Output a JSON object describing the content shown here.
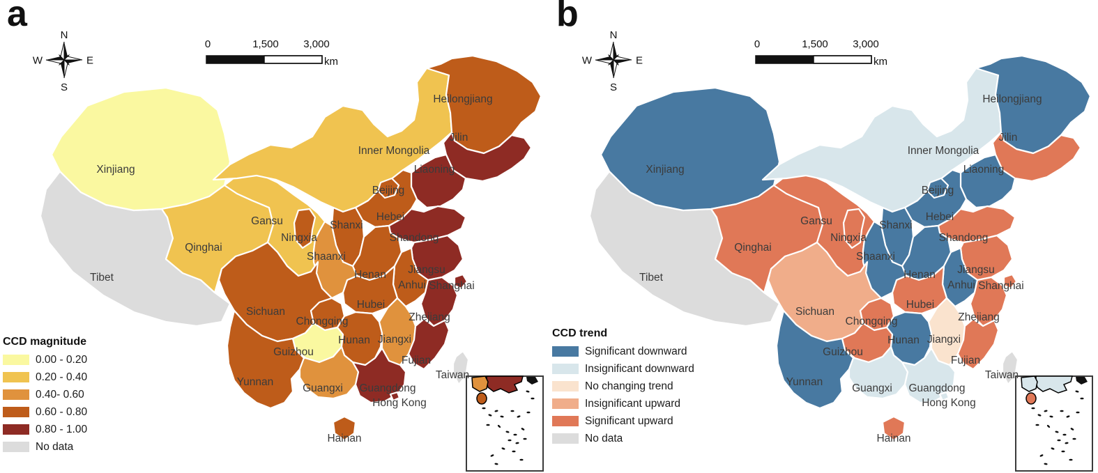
{
  "figure": {
    "panel_a_letter": "a",
    "panel_b_letter": "b"
  },
  "compass": {
    "north": "N",
    "east": "E",
    "south": "S",
    "west": "W"
  },
  "scale_bar": {
    "ticks": [
      "0",
      "1,500",
      "3,000"
    ],
    "unit": "km"
  },
  "legend_a": {
    "title": "CCD magnitude",
    "items": [
      {
        "label": "0.00 - 0.20",
        "color": "#FAF8A0"
      },
      {
        "label": "0.20 - 0.40",
        "color": "#F0C350"
      },
      {
        "label": "0.40- 0.60",
        "color": "#E0923D"
      },
      {
        "label": "0.60 - 0.80",
        "color": "#BE5C1A"
      },
      {
        "label": "0.80 - 1.00",
        "color": "#8E2B24"
      },
      {
        "label": "No data",
        "color": "#DCDCDC"
      }
    ]
  },
  "legend_b": {
    "title": "CCD trend",
    "items": [
      {
        "label": "Significant downward",
        "color": "#4879A1"
      },
      {
        "label": "Insignificant downward",
        "color": "#D8E6EB"
      },
      {
        "label": "No changing trend",
        "color": "#FAE3CE"
      },
      {
        "label": "Insignificant upward",
        "color": "#F0AD8A"
      },
      {
        "label": "Significant upward",
        "color": "#E07857"
      },
      {
        "label": "No data",
        "color": "#DCDCDC"
      }
    ]
  },
  "provinces": [
    {
      "name": "Xinjiang",
      "magnitude": "0.00 - 0.20",
      "trend": "Significant downward"
    },
    {
      "name": "Tibet",
      "magnitude": "No data",
      "trend": "No data"
    },
    {
      "name": "Qinghai",
      "magnitude": "0.20 - 0.40",
      "trend": "Significant upward"
    },
    {
      "name": "Gansu",
      "magnitude": "0.20 - 0.40",
      "trend": "Significant upward"
    },
    {
      "name": "Inner Mongolia",
      "magnitude": "0.20 - 0.40",
      "trend": "Insignificant downward"
    },
    {
      "name": "Heilongjiang",
      "magnitude": "0.60 - 0.80",
      "trend": "Significant downward"
    },
    {
      "name": "Jilin",
      "magnitude": "0.80 - 1.00",
      "trend": "Significant upward"
    },
    {
      "name": "Liaoning",
      "magnitude": "0.80 - 1.00",
      "trend": "Significant downward"
    },
    {
      "name": "Beijing",
      "magnitude": "0.60 - 0.80",
      "trend": "Significant downward"
    },
    {
      "name": "Hebei",
      "magnitude": "0.60 - 0.80",
      "trend": "Significant downward"
    },
    {
      "name": "Shanxi",
      "magnitude": "0.60 - 0.80",
      "trend": "Significant downward"
    },
    {
      "name": "Shandong",
      "magnitude": "0.80 - 1.00",
      "trend": "Significant upward"
    },
    {
      "name": "Henan",
      "magnitude": "0.60 - 0.80",
      "trend": "Significant downward"
    },
    {
      "name": "Jiangsu",
      "magnitude": "0.80 - 1.00",
      "trend": "Significant upward"
    },
    {
      "name": "Anhui",
      "magnitude": "0.60 - 0.80",
      "trend": "Significant downward"
    },
    {
      "name": "Shanghai",
      "magnitude": "0.80 - 1.00",
      "trend": "Significant upward"
    },
    {
      "name": "Zhejiang",
      "magnitude": "0.80 - 1.00",
      "trend": "Significant upward"
    },
    {
      "name": "Hubei",
      "magnitude": "0.60 - 0.80",
      "trend": "Significant upward"
    },
    {
      "name": "Shaanxi",
      "magnitude": "0.40- 0.60",
      "trend": "Significant downward"
    },
    {
      "name": "Ningxia",
      "magnitude": "0.60 - 0.80",
      "trend": "Significant upward"
    },
    {
      "name": "Sichuan",
      "magnitude": "0.60 - 0.80",
      "trend": "Insignificant upward"
    },
    {
      "name": "Chongqing",
      "magnitude": "0.60 - 0.80",
      "trend": "Significant upward"
    },
    {
      "name": "Yunnan",
      "magnitude": "0.60 - 0.80",
      "trend": "Significant downward"
    },
    {
      "name": "Guizhou",
      "magnitude": "0.00 - 0.20",
      "trend": "Significant upward"
    },
    {
      "name": "Hunan",
      "magnitude": "0.60 - 0.80",
      "trend": "Significant downward"
    },
    {
      "name": "Jiangxi",
      "magnitude": "0.40- 0.60",
      "trend": "No changing trend"
    },
    {
      "name": "Fujian",
      "magnitude": "0.80 - 1.00",
      "trend": "Significant upward"
    },
    {
      "name": "Guangxi",
      "magnitude": "0.40- 0.60",
      "trend": "Insignificant downward"
    },
    {
      "name": "Guangdong",
      "magnitude": "0.80 - 1.00",
      "trend": "Insignificant downward"
    },
    {
      "name": "Hong Kong",
      "magnitude": "0.80 - 1.00",
      "trend": "Insignificant downward"
    },
    {
      "name": "Hainan",
      "magnitude": "0.60 - 0.80",
      "trend": "Significant upward"
    },
    {
      "name": "Taiwan",
      "magnitude": "No data",
      "trend": "No data"
    }
  ]
}
